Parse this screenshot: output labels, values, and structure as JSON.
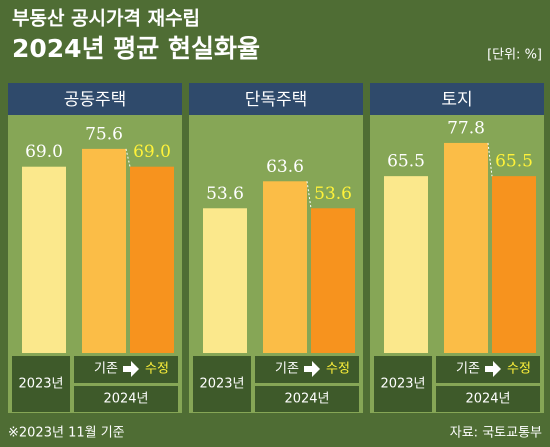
{
  "header": {
    "title": "부동산 공시가격 재수립",
    "subtitle": "2024년 평균 현실화율",
    "unit": "[단위: %]"
  },
  "footer": {
    "note": "※2023년 11월 기준",
    "source": "자료: 국토교통부"
  },
  "chart_data": [
    {
      "type": "bar",
      "title": "공동주택",
      "categories": [
        "2023년",
        "기존",
        "수정"
      ],
      "group": "2024년",
      "values": [
        69.0,
        75.6,
        69.0
      ],
      "value_labels": [
        "69.0",
        "75.6",
        "69.0"
      ],
      "colors": [
        "#fbe88c",
        "#fbbd47",
        "#f7931e"
      ],
      "label_colors": [
        "#ffffff",
        "#ffffff",
        "#fff23a"
      ]
    },
    {
      "type": "bar",
      "title": "단독주택",
      "categories": [
        "2023년",
        "기존",
        "수정"
      ],
      "group": "2024년",
      "values": [
        53.6,
        63.6,
        53.6
      ],
      "value_labels": [
        "53.6",
        "63.6",
        "53.6"
      ],
      "colors": [
        "#fbe88c",
        "#fbbd47",
        "#f7931e"
      ],
      "label_colors": [
        "#ffffff",
        "#ffffff",
        "#fff23a"
      ]
    },
    {
      "type": "bar",
      "title": "토지",
      "categories": [
        "2023년",
        "기존",
        "수정"
      ],
      "group": "2024년",
      "values": [
        65.5,
        77.8,
        65.5
      ],
      "value_labels": [
        "65.5",
        "77.8",
        "65.5"
      ],
      "colors": [
        "#fbe88c",
        "#fbbd47",
        "#f7931e"
      ],
      "label_colors": [
        "#ffffff",
        "#ffffff",
        "#fff23a"
      ]
    }
  ]
}
